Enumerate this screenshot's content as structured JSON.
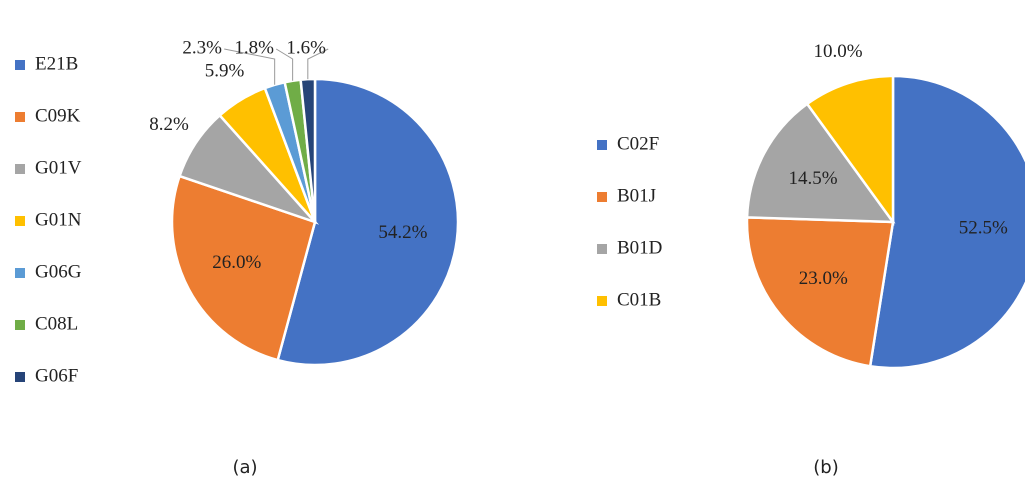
{
  "chart_data": [
    {
      "type": "pie",
      "caption": "(a)",
      "categories": [
        "E21B",
        "C09K",
        "G01V",
        "G01N",
        "G06G",
        "C08L",
        "G06F"
      ],
      "values": [
        54.2,
        26.0,
        8.2,
        5.9,
        2.3,
        1.8,
        1.6
      ],
      "value_labels": [
        "54.2%",
        "26.0%",
        "8.2%",
        "5.9%",
        "2.3%",
        "1.8%",
        "1.6%"
      ],
      "colors": [
        "#4472c4",
        "#ed7d31",
        "#a5a5a5",
        "#ffc000",
        "#5b9bd5",
        "#70ad47",
        "#264478"
      ],
      "legend": "left"
    },
    {
      "type": "pie",
      "caption": "(b)",
      "categories": [
        "C02F",
        "B01J",
        "B01D",
        "C01B"
      ],
      "values": [
        52.5,
        23.0,
        14.5,
        10.0
      ],
      "value_labels": [
        "52.5%",
        "23.0%",
        "14.5%",
        "10.0%"
      ],
      "colors": [
        "#4472c4",
        "#ed7d31",
        "#a5a5a5",
        "#ffc000"
      ],
      "legend": "left"
    }
  ]
}
